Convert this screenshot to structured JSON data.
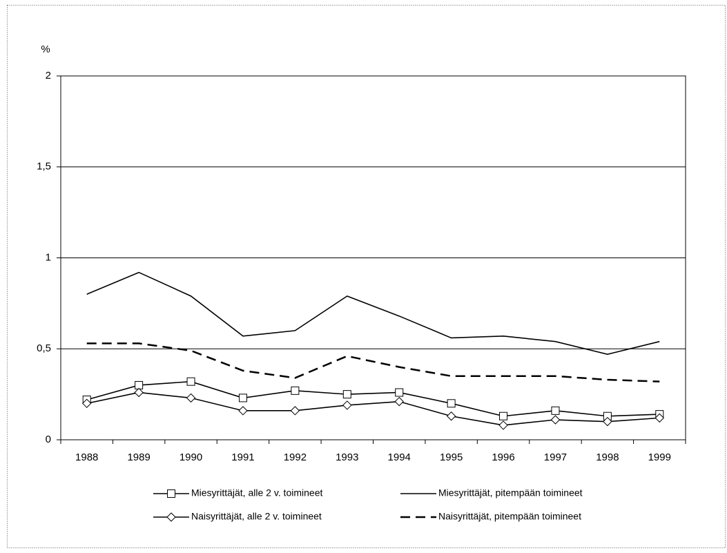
{
  "chart_data": {
    "type": "line",
    "ylabel": "%",
    "categories": [
      "1988",
      "1989",
      "1990",
      "1991",
      "1992",
      "1993",
      "1994",
      "1995",
      "1996",
      "1997",
      "1998",
      "1999"
    ],
    "series": [
      {
        "name": "Miesyrittäjät, alle 2 v. toimineet",
        "color": "#000000",
        "marker": "square",
        "dash": "solid",
        "values": [
          0.22,
          0.3,
          0.32,
          0.23,
          0.27,
          0.25,
          0.26,
          0.2,
          0.13,
          0.16,
          0.13,
          0.14
        ]
      },
      {
        "name": "Miesyrittäjät, pitempään toimineet",
        "color": "#000000",
        "marker": "none",
        "dash": "solid",
        "values": [
          0.8,
          0.92,
          0.79,
          0.57,
          0.6,
          0.79,
          0.68,
          0.56,
          0.57,
          0.54,
          0.47,
          0.54
        ]
      },
      {
        "name": "Naisyrittäjät, alle 2 v. toimineet",
        "color": "#000000",
        "marker": "diamond",
        "dash": "solid",
        "values": [
          0.2,
          0.26,
          0.23,
          0.16,
          0.16,
          0.19,
          0.21,
          0.13,
          0.08,
          0.11,
          0.1,
          0.12
        ]
      },
      {
        "name": "Naisyrittäjät, pitempään toimineet",
        "color": "#000000",
        "marker": "none",
        "dash": "dashed",
        "values": [
          0.53,
          0.53,
          0.49,
          0.38,
          0.34,
          0.46,
          0.4,
          0.35,
          0.35,
          0.35,
          0.33,
          0.32
        ]
      }
    ],
    "ylim": [
      0,
      2
    ],
    "yticks": [
      0,
      {
        "value": 0.5,
        "label": "0,5"
      },
      1,
      {
        "value": 1.5,
        "label": "1,5"
      },
      2
    ],
    "grid": true,
    "legend": "bottom"
  }
}
